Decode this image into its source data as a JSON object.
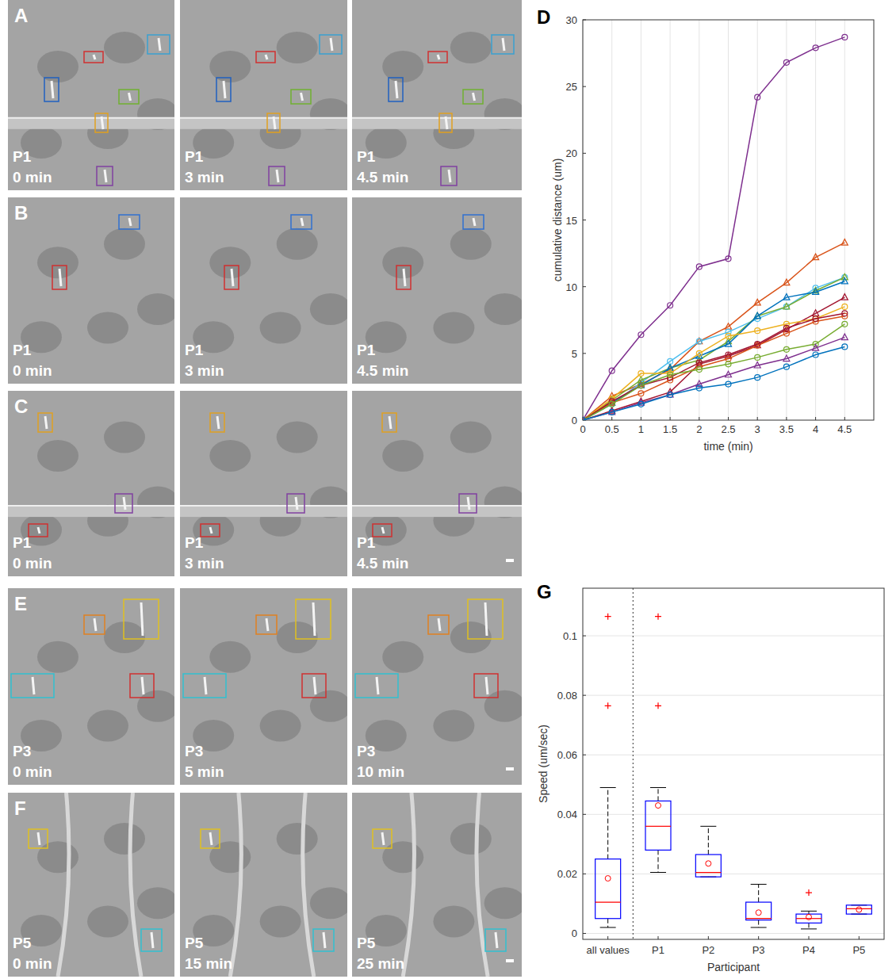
{
  "image_panels": [
    {
      "letter": "A",
      "participant": "P1",
      "times": [
        "0 min",
        "3 min",
        "4.5 min"
      ]
    },
    {
      "letter": "B",
      "participant": "P1",
      "times": [
        "0 min",
        "3 min",
        "4.5 min"
      ]
    },
    {
      "letter": "C",
      "participant": "P1",
      "times": [
        "0 min",
        "3 min",
        "4.5 min"
      ]
    },
    {
      "letter": "E",
      "participant": "P3",
      "times": [
        "0 min",
        "5 min",
        "10 min"
      ]
    },
    {
      "letter": "F",
      "participant": "P5",
      "times": [
        "0 min",
        "15 min",
        "25 min"
      ]
    }
  ],
  "chart_data": [
    {
      "type": "line",
      "annotations": [
        "D"
      ],
      "x_label": "time (min)",
      "y_label": "cumulative distance (um)",
      "x": [
        0,
        0.5,
        1,
        1.5,
        2,
        2.5,
        3,
        3.5,
        4,
        4.5
      ],
      "xlim": [
        0,
        5
      ],
      "xticks": [
        0,
        0.5,
        1,
        1.5,
        2,
        2.5,
        3,
        3.5,
        4,
        4.5
      ],
      "ylim": [
        0,
        30
      ],
      "yticks": [
        0,
        5,
        10,
        15,
        20,
        25,
        30
      ],
      "grid": "x",
      "series": [
        {
          "color": "#7E2F8E",
          "marker": "circle",
          "values": [
            0,
            3.7,
            6.4,
            8.6,
            11.5,
            12.1,
            24.2,
            26.8,
            27.9,
            28.7
          ]
        },
        {
          "color": "#D95319",
          "marker": "triangle",
          "values": [
            0,
            1.8,
            2.7,
            3.8,
            5.9,
            7.0,
            8.8,
            10.3,
            12.2,
            13.3
          ]
        },
        {
          "color": "#4DBEEE",
          "marker": "circle",
          "values": [
            0,
            1.2,
            2.8,
            4.4,
            5.9,
            6.6,
            7.6,
            8.5,
            9.9,
            10.7
          ]
        },
        {
          "color": "#77AC30",
          "marker": "triangle",
          "values": [
            0,
            1.5,
            3.0,
            3.9,
            4.5,
            5.9,
            7.8,
            8.5,
            9.7,
            10.7
          ]
        },
        {
          "color": "#0072BD",
          "marker": "triangle",
          "values": [
            0,
            1.3,
            2.6,
            3.9,
            4.8,
            5.7,
            7.8,
            9.2,
            9.6,
            10.4
          ]
        },
        {
          "color": "#A2142F",
          "marker": "triangle",
          "values": [
            0,
            0.7,
            1.4,
            2.1,
            4.2,
            4.8,
            5.6,
            6.8,
            8.0,
            9.2
          ]
        },
        {
          "color": "#EDB120",
          "marker": "circle",
          "values": [
            0,
            1.6,
            3.5,
            3.5,
            5.0,
            6.3,
            6.7,
            7.2,
            7.6,
            8.5
          ]
        },
        {
          "color": "#D95319",
          "marker": "circle",
          "values": [
            0,
            1.3,
            2.0,
            3.0,
            4.0,
            4.6,
            5.6,
            6.5,
            7.4,
            7.8
          ]
        },
        {
          "color": "#A2142F",
          "marker": "circle",
          "values": [
            0,
            1.4,
            2.6,
            3.2,
            4.3,
            4.9,
            5.7,
            6.9,
            7.6,
            8.0
          ]
        },
        {
          "color": "#77AC30",
          "marker": "circle",
          "values": [
            0,
            1.2,
            2.6,
            3.4,
            3.8,
            4.2,
            4.7,
            5.3,
            5.7,
            7.2
          ]
        },
        {
          "color": "#7E2F8E",
          "marker": "triangle",
          "values": [
            0,
            0.6,
            1.3,
            1.9,
            2.7,
            3.4,
            4.1,
            4.6,
            5.4,
            6.2
          ]
        },
        {
          "color": "#0072BD",
          "marker": "circle",
          "values": [
            0,
            0.6,
            1.2,
            1.9,
            2.4,
            2.7,
            3.2,
            4.0,
            4.9,
            5.5
          ]
        }
      ]
    },
    {
      "type": "box",
      "annotations": [
        "G"
      ],
      "x_label": "Participant",
      "y_label": "Speed (um/sec)",
      "color": "#0000FF",
      "categories": [
        "all values",
        "P1",
        "P2",
        "P3",
        "P4",
        "P5"
      ],
      "min": [
        0.002,
        0.0205,
        0.019,
        0.002,
        0.0015,
        0.0065
      ],
      "q1": [
        0.005,
        0.028,
        0.019,
        0.0045,
        0.0035,
        0.0065
      ],
      "median": [
        0.0105,
        0.036,
        0.0205,
        0.005,
        0.005,
        0.0083
      ],
      "q3": [
        0.025,
        0.0445,
        0.0265,
        0.0105,
        0.0065,
        0.0095
      ],
      "max": [
        0.049,
        0.049,
        0.036,
        0.0165,
        0.0075,
        0.0095
      ],
      "mean": [
        0.0185,
        0.043,
        0.0235,
        0.007,
        0.0055,
        0.008
      ],
      "outliers": [
        [
          0.0765,
          0.1065
        ],
        [
          0.0765,
          0.1065
        ],
        [],
        [],
        [
          0.0137
        ],
        []
      ],
      "ylim": [
        -0.002,
        0.116
      ],
      "yticks": [
        0,
        0.02,
        0.04,
        0.06,
        0.08,
        0.1
      ],
      "grid": "y"
    }
  ]
}
